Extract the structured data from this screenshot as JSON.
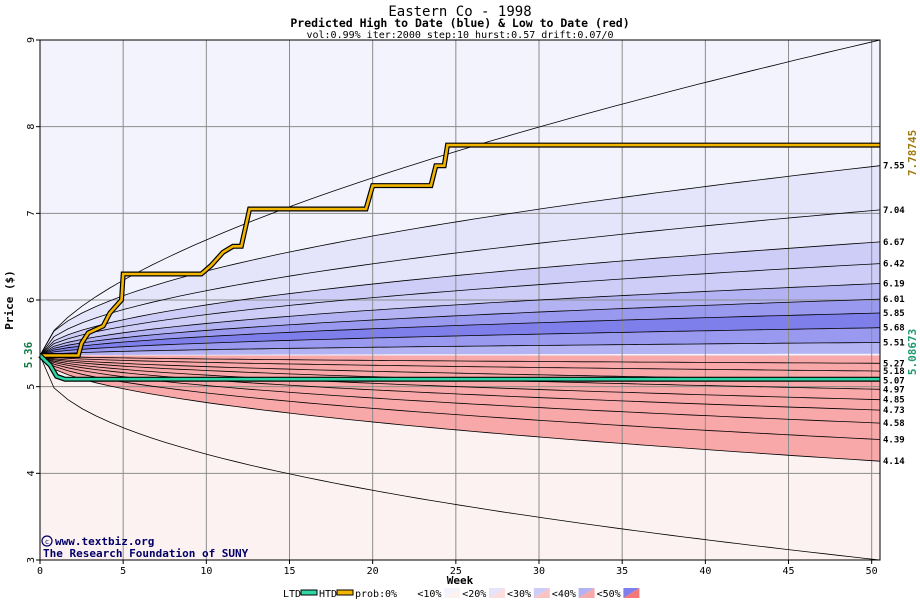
{
  "chart_data": {
    "type": "area",
    "title": "Eastern Co - 1998",
    "subtitle": "Predicted High to Date (blue) &  Low to Date (red)",
    "params": "vol:0.99% iter:2000 step:10 hurst:0.57 drift:0.07/0",
    "xlabel": "Week",
    "ylabel": "Price ($)",
    "xlim": [
      0,
      50.5
    ],
    "ylim": [
      3,
      9
    ],
    "xticks": [
      0,
      5,
      10,
      15,
      20,
      25,
      30,
      35,
      40,
      45,
      50
    ],
    "yticks": [
      3,
      4,
      5,
      6,
      7,
      8,
      9
    ],
    "grid": true,
    "start_price": 5.36,
    "start_label": "5.36",
    "htd_final": 7.78745,
    "htd_final_label": "7.78745",
    "ltd_final": 5.08673,
    "ltd_final_label": "5.08673",
    "watermark": [
      "www.textbiz.org",
      "The Research Foundation of SUNY"
    ],
    "legend": {
      "ltd": "LTD",
      "htd": "HTD",
      "prob": "prob:",
      "items": [
        "0%",
        "<10%",
        "<20%",
        "<30%",
        "<40%",
        "<50%"
      ]
    },
    "high_band_labels": [
      {
        "label": "7.55",
        "value": 7.55
      },
      {
        "label": "7.04",
        "value": 7.04
      },
      {
        "label": "6.67",
        "value": 6.67
      },
      {
        "label": "6.42",
        "value": 6.42
      },
      {
        "label": "6.19",
        "value": 6.19
      },
      {
        "label": "6.01",
        "value": 6.01
      },
      {
        "label": "5.85",
        "value": 5.85
      },
      {
        "label": "5.68",
        "value": 5.68
      },
      {
        "label": "5.51",
        "value": 5.51
      }
    ],
    "low_band_labels": [
      {
        "label": "5.27",
        "value": 5.27
      },
      {
        "label": "5.18",
        "value": 5.18
      },
      {
        "label": "5.07",
        "value": 5.07
      },
      {
        "label": "4.97",
        "value": 4.97
      },
      {
        "label": "4.85",
        "value": 4.85
      },
      {
        "label": "4.73",
        "value": 4.73
      },
      {
        "label": "4.58",
        "value": 4.58
      },
      {
        "label": "4.39",
        "value": 4.39
      },
      {
        "label": "4.14",
        "value": 4.14
      }
    ],
    "envelope_high_final": 9.0,
    "envelope_low_final": 3.0,
    "htd_series": [
      [
        0,
        5.36
      ],
      [
        2.3,
        5.36
      ],
      [
        2.5,
        5.5
      ],
      [
        2.9,
        5.62
      ],
      [
        3.8,
        5.7
      ],
      [
        4.2,
        5.85
      ],
      [
        4.9,
        6.0
      ],
      [
        5.0,
        6.3
      ],
      [
        9.7,
        6.3
      ],
      [
        10.3,
        6.4
      ],
      [
        11.0,
        6.55
      ],
      [
        11.6,
        6.62
      ],
      [
        12.1,
        6.62
      ],
      [
        12.6,
        7.05
      ],
      [
        19.6,
        7.05
      ],
      [
        20.0,
        7.32
      ],
      [
        23.5,
        7.32
      ],
      [
        23.8,
        7.55
      ],
      [
        24.3,
        7.55
      ],
      [
        24.5,
        7.78745
      ],
      [
        50.5,
        7.78745
      ]
    ],
    "ltd_series": [
      [
        0,
        5.36
      ],
      [
        0.6,
        5.25
      ],
      [
        1.0,
        5.12
      ],
      [
        1.5,
        5.08673
      ],
      [
        50.5,
        5.08673
      ]
    ],
    "colors": {
      "htd_line": "#f2b500",
      "ltd_line": "#2ed6a6",
      "high_label": "#a07a10",
      "low_label": "#1f9a6e",
      "grid": "#8c8c8c",
      "band_high": [
        "#f3f3fd",
        "#e4e4fb",
        "#cdcdf7",
        "#b3b3f3",
        "#9999ef",
        "#7f7fec"
      ],
      "band_low": [
        "#fdf2f2",
        "#fcdcdc",
        "#fac2c2",
        "#f8a8a8",
        "#f68f8f",
        "#f47676"
      ]
    }
  }
}
